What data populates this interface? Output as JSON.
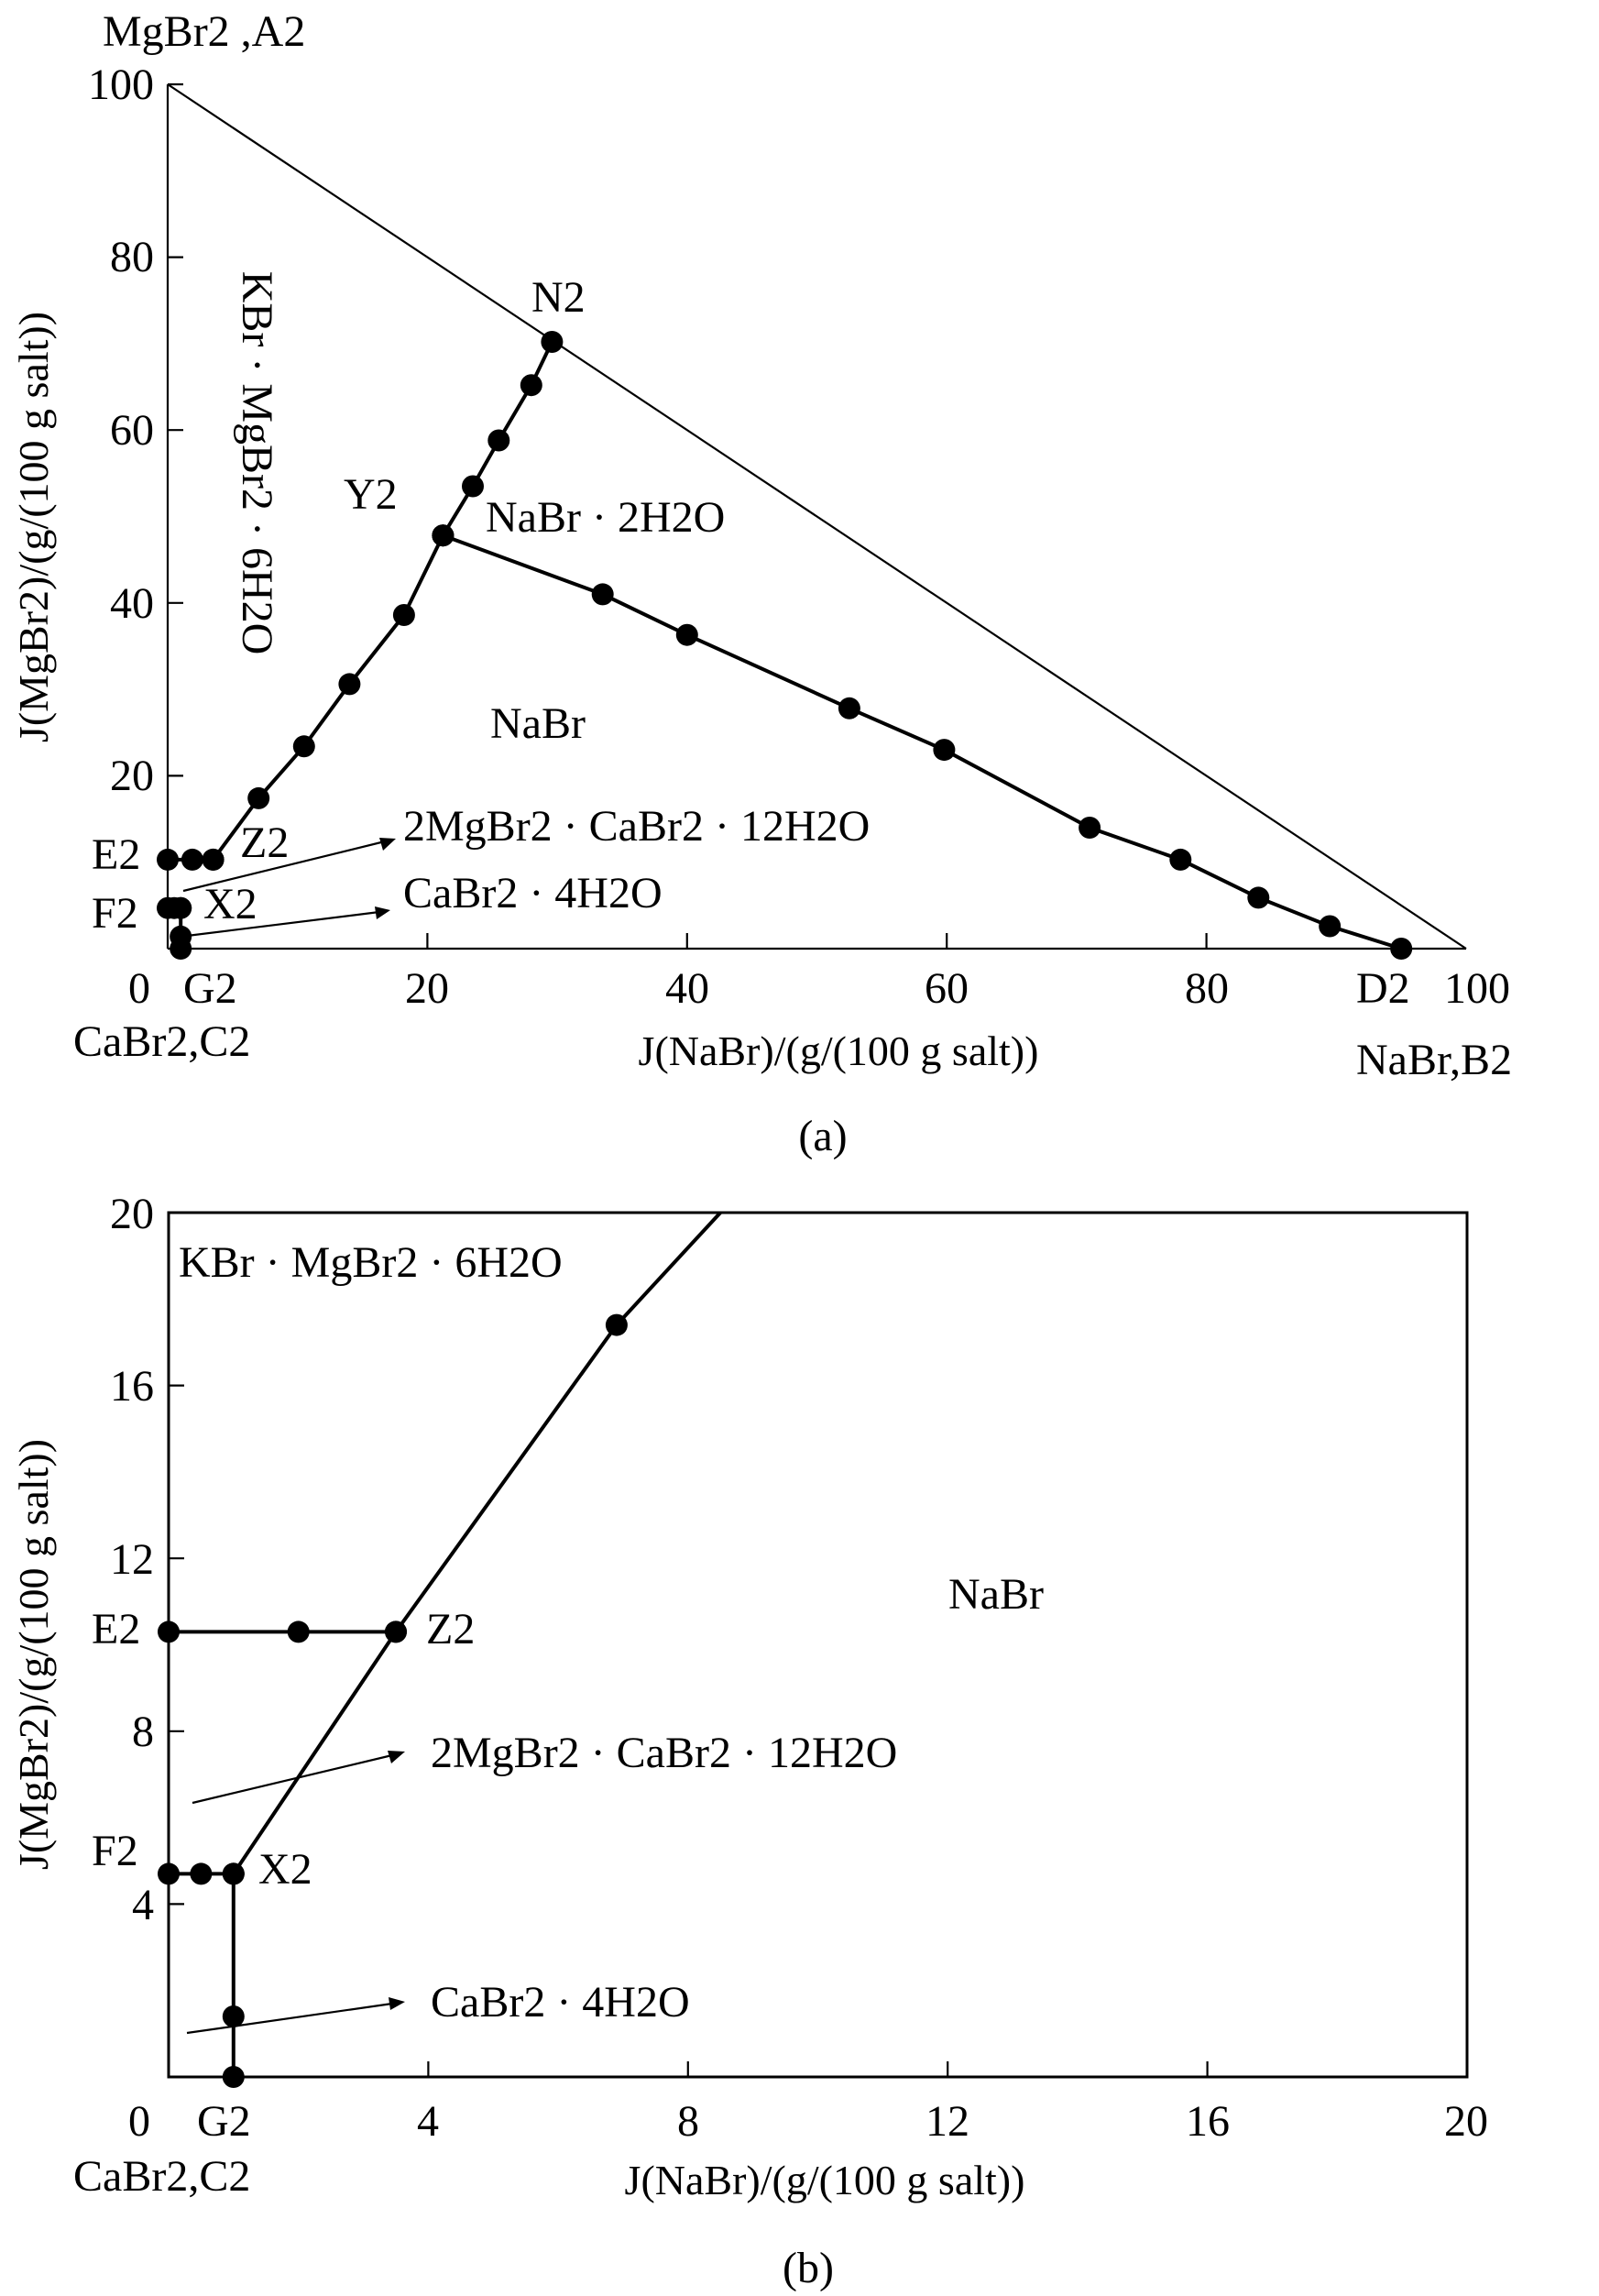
{
  "chart_data": [
    {
      "type": "scatter",
      "panel": "(a)",
      "xlabel": "J(NaBr)/(g/(100 g salt))",
      "ylabel": "J(MgBr2)/(g/(100 g salt))",
      "xlim": [
        0,
        100
      ],
      "ylim": [
        0,
        100
      ],
      "x_ticks": [
        "0",
        "20",
        "40",
        "60",
        "80",
        "100"
      ],
      "y_ticks": [
        "100",
        "80",
        "60",
        "40",
        "20"
      ],
      "vertex_labels": {
        "top": "MgBr2 ,A2",
        "origin": "CaBr2,C2",
        "right": "NaBr,B2"
      },
      "point_labels": [
        "N2",
        "Y2",
        "Z2",
        "X2",
        "E2",
        "F2",
        "G2",
        "D2"
      ],
      "region_labels": [
        "KBr · MgBr2 · 6H2O",
        "NaBr · 2H2O",
        "NaBr",
        "2MgBr2 · CaBr2 · 12H2O",
        "CaBr2 · 4H2O"
      ],
      "series": [
        {
          "name": "N2-Y2",
          "points": [
            [
              29.6,
              70.2
            ],
            [
              28.0,
              65.2
            ],
            [
              25.5,
              58.8
            ],
            [
              23.5,
              53.5
            ],
            [
              21.2,
              47.8
            ]
          ]
        },
        {
          "name": "Y2-Z2",
          "points": [
            [
              21.2,
              47.8
            ],
            [
              18.2,
              38.6
            ],
            [
              14.0,
              30.6
            ],
            [
              10.5,
              23.4
            ],
            [
              7.0,
              17.4
            ],
            [
              3.5,
              10.3
            ]
          ]
        },
        {
          "name": "Y2-D2",
          "points": [
            [
              21.2,
              47.8
            ],
            [
              33.5,
              41.0
            ],
            [
              40.0,
              36.3
            ],
            [
              52.5,
              27.8
            ],
            [
              59.8,
              23.0
            ],
            [
              71.0,
              14.0
            ],
            [
              78.0,
              10.3
            ],
            [
              84.0,
              5.9
            ],
            [
              89.5,
              2.6
            ],
            [
              95.0,
              0.0
            ]
          ]
        },
        {
          "name": "E2-Z2",
          "points": [
            [
              0.0,
              10.3
            ],
            [
              1.9,
              10.3
            ],
            [
              3.5,
              10.3
            ]
          ]
        },
        {
          "name": "F2-X2",
          "points": [
            [
              0.0,
              4.7
            ],
            [
              0.5,
              4.7
            ],
            [
              1.0,
              4.7
            ]
          ]
        },
        {
          "name": "X2-G2",
          "points": [
            [
              1.0,
              4.7
            ],
            [
              1.0,
              1.4
            ],
            [
              1.0,
              0.0
            ]
          ]
        }
      ]
    },
    {
      "type": "scatter",
      "panel": "(b)",
      "xlabel": "J(NaBr)/(g/(100 g salt))",
      "ylabel": "J(MgBr2)/(g/(100 g salt))",
      "xlim": [
        0,
        20
      ],
      "ylim": [
        0,
        20
      ],
      "x_ticks": [
        "0",
        "4",
        "8",
        "12",
        "16",
        "20"
      ],
      "y_ticks": [
        "20",
        "16",
        "12",
        "8",
        "4"
      ],
      "vertex_labels": {
        "origin": "CaBr2,C2"
      },
      "point_labels": [
        "E2",
        "Z2",
        "F2",
        "X2",
        "G2"
      ],
      "region_labels": [
        "KBr · MgBr2 · 6H2O",
        "NaBr",
        "2MgBr2 · CaBr2 · 12H2O",
        "CaBr2 · 4H2O"
      ],
      "series": [
        {
          "name": "Y2-Z2",
          "points": [
            [
              6.9,
              17.4
            ],
            [
              3.5,
              10.3
            ],
            [
              1.0,
              4.7
            ]
          ]
        },
        {
          "name": "E2-Z2",
          "points": [
            [
              0.0,
              10.3
            ],
            [
              2.0,
              10.3
            ],
            [
              3.5,
              10.3
            ]
          ]
        },
        {
          "name": "F2-X2",
          "points": [
            [
              0.0,
              4.7
            ],
            [
              0.5,
              4.7
            ],
            [
              1.0,
              4.7
            ]
          ]
        },
        {
          "name": "X2-G2",
          "points": [
            [
              1.0,
              4.7
            ],
            [
              1.0,
              1.4
            ],
            [
              1.0,
              0.0
            ]
          ]
        }
      ]
    }
  ]
}
